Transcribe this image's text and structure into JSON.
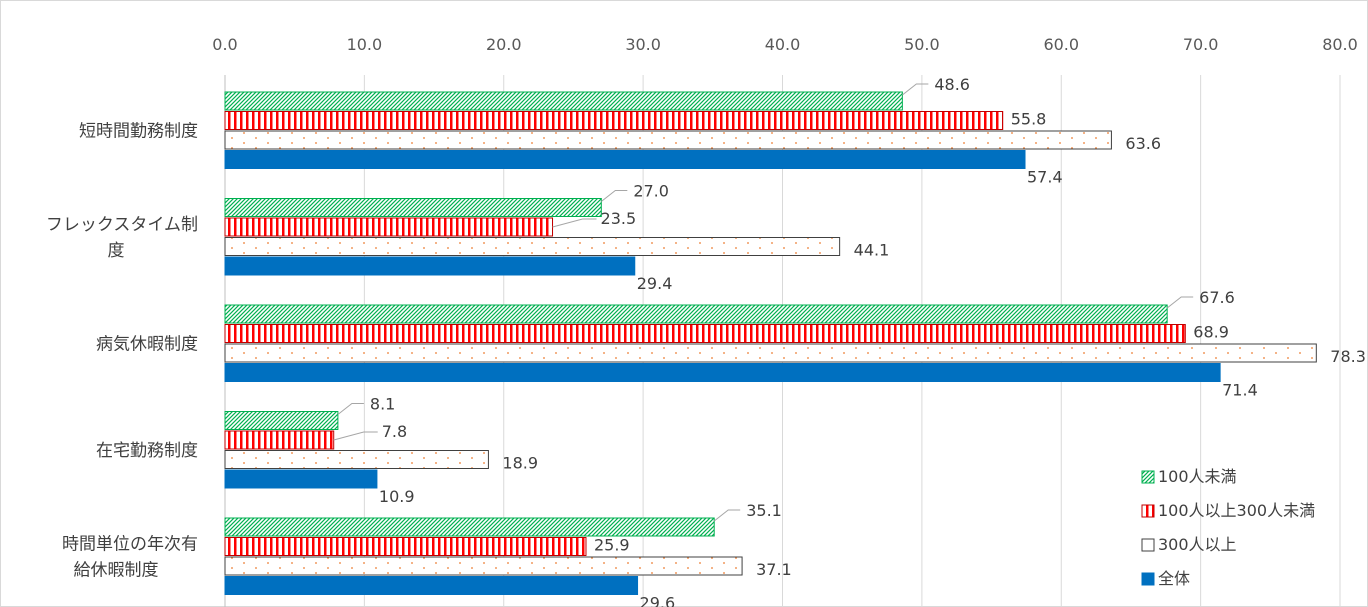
{
  "chart_data": {
    "type": "bar",
    "orientation": "horizontal",
    "xlim": [
      0,
      80
    ],
    "xticks": [
      "0.0",
      "10.0",
      "20.0",
      "30.0",
      "40.0",
      "50.0",
      "60.0",
      "70.0",
      "80.0"
    ],
    "grid": true,
    "legend_position": "bottom-right",
    "categories": [
      [
        "短時間勤務制度"
      ],
      [
        "フレックスタイム制",
        "度"
      ],
      [
        "病気休暇制度"
      ],
      [
        "在宅勤務制度"
      ],
      [
        "時間単位の年次有",
        "給休暇制度"
      ]
    ],
    "series": [
      {
        "name": "100人未満",
        "color": "#00b050",
        "pattern": "diagonal-hatch",
        "values": [
          48.6,
          27.0,
          67.6,
          8.1,
          35.1
        ],
        "labels": [
          "48.6",
          "27.0",
          "67.6",
          "8.1",
          "35.1"
        ]
      },
      {
        "name": "100人以上300人未満",
        "color": "#ff0000",
        "pattern": "vertical-stripes",
        "values": [
          55.8,
          23.5,
          68.9,
          7.8,
          25.9
        ],
        "labels": [
          "55.8",
          "23.5",
          "68.9",
          "7.8",
          "25.9"
        ]
      },
      {
        "name": "300人以上",
        "color": "#ed7d31",
        "pattern": "dots",
        "values": [
          63.6,
          44.1,
          78.3,
          18.9,
          37.1
        ],
        "labels": [
          "63.6",
          "44.1",
          "78.3",
          "18.9",
          "37.1"
        ]
      },
      {
        "name": "全体",
        "color": "#0070c0",
        "pattern": "solid",
        "values": [
          57.4,
          29.4,
          71.4,
          10.9,
          29.6
        ],
        "labels": [
          "57.4",
          "29.4",
          "71.4",
          "10.9",
          "29.6"
        ]
      }
    ]
  }
}
